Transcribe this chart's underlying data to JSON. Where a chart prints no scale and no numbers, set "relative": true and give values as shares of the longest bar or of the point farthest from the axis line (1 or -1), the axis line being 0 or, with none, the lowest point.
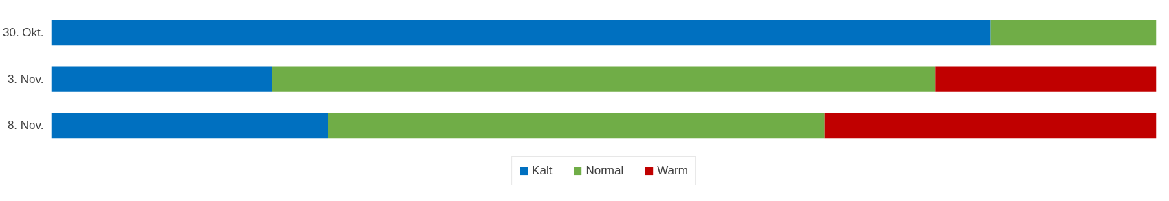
{
  "chart_data": {
    "type": "bar",
    "orientation": "horizontal",
    "stacked": true,
    "relative": true,
    "legend": "bottom",
    "categories": [
      "30. Okt.",
      "3. Nov.",
      "8. Nov."
    ],
    "series": [
      {
        "name": "Kalt",
        "color": "#0070c0",
        "values": [
          0.85,
          0.2,
          0.25
        ]
      },
      {
        "name": "Normal",
        "color": "#70ad47",
        "values": [
          0.15,
          0.6,
          0.45
        ]
      },
      {
        "name": "Warm",
        "color": "#c00000",
        "values": [
          0,
          0.2,
          0.3
        ]
      }
    ]
  }
}
